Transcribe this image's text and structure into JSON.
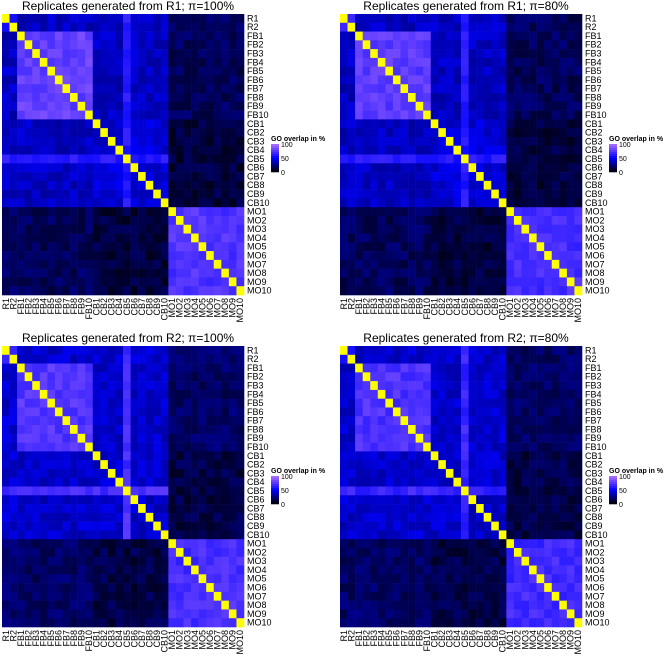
{
  "figure": {
    "labels": [
      "R1",
      "R2",
      "FB1",
      "FB2",
      "FB3",
      "FB4",
      "FB5",
      "FB6",
      "FB7",
      "FB8",
      "FB9",
      "FB10",
      "CB1",
      "CB2",
      "CB3",
      "CB4",
      "CB5",
      "CB6",
      "CB7",
      "CB8",
      "CB9",
      "CB10",
      "MO1",
      "MO2",
      "MO3",
      "MO4",
      "MO5",
      "MO6",
      "MO7",
      "MO8",
      "MO9",
      "MO10"
    ],
    "legend": {
      "title": "GO overlap in %",
      "ticks": [
        "100",
        "50",
        "0"
      ]
    },
    "colors": {
      "low": "#000000",
      "mid": "#0000ff",
      "high": "#ffff00",
      "upper": "#b070ff"
    }
  },
  "chart_data": [
    {
      "type": "heatmap",
      "title": "Replicates generated from R1; π=100%",
      "pattern": {
        "fb_block": 78,
        "cb_block": 42,
        "mo_block": 72,
        "cb5_row": 60,
        "mo_cb_cross": 12,
        "background": 28
      },
      "zlim": [
        0,
        100
      ]
    },
    {
      "type": "heatmap",
      "title": "Replicates generated from R1; π=80%",
      "pattern": {
        "fb_block": 76,
        "cb_block": 42,
        "mo_block": 70,
        "cb5_row": 60,
        "mo_cb_cross": 12,
        "background": 28
      },
      "zlim": [
        0,
        100
      ]
    },
    {
      "type": "heatmap",
      "title": "Replicates generated from R2; π=100%",
      "pattern": {
        "fb_block": 74,
        "cb_block": 40,
        "mo_block": 70,
        "cb5_row": 70,
        "mo_cb_cross": 14,
        "background": 30
      },
      "zlim": [
        0,
        100
      ]
    },
    {
      "type": "heatmap",
      "title": "Replicates generated from R2; π=80%",
      "pattern": {
        "fb_block": 72,
        "cb_block": 40,
        "mo_block": 68,
        "cb5_row": 66,
        "mo_cb_cross": 14,
        "background": 30
      },
      "zlim": [
        0,
        100
      ]
    }
  ]
}
